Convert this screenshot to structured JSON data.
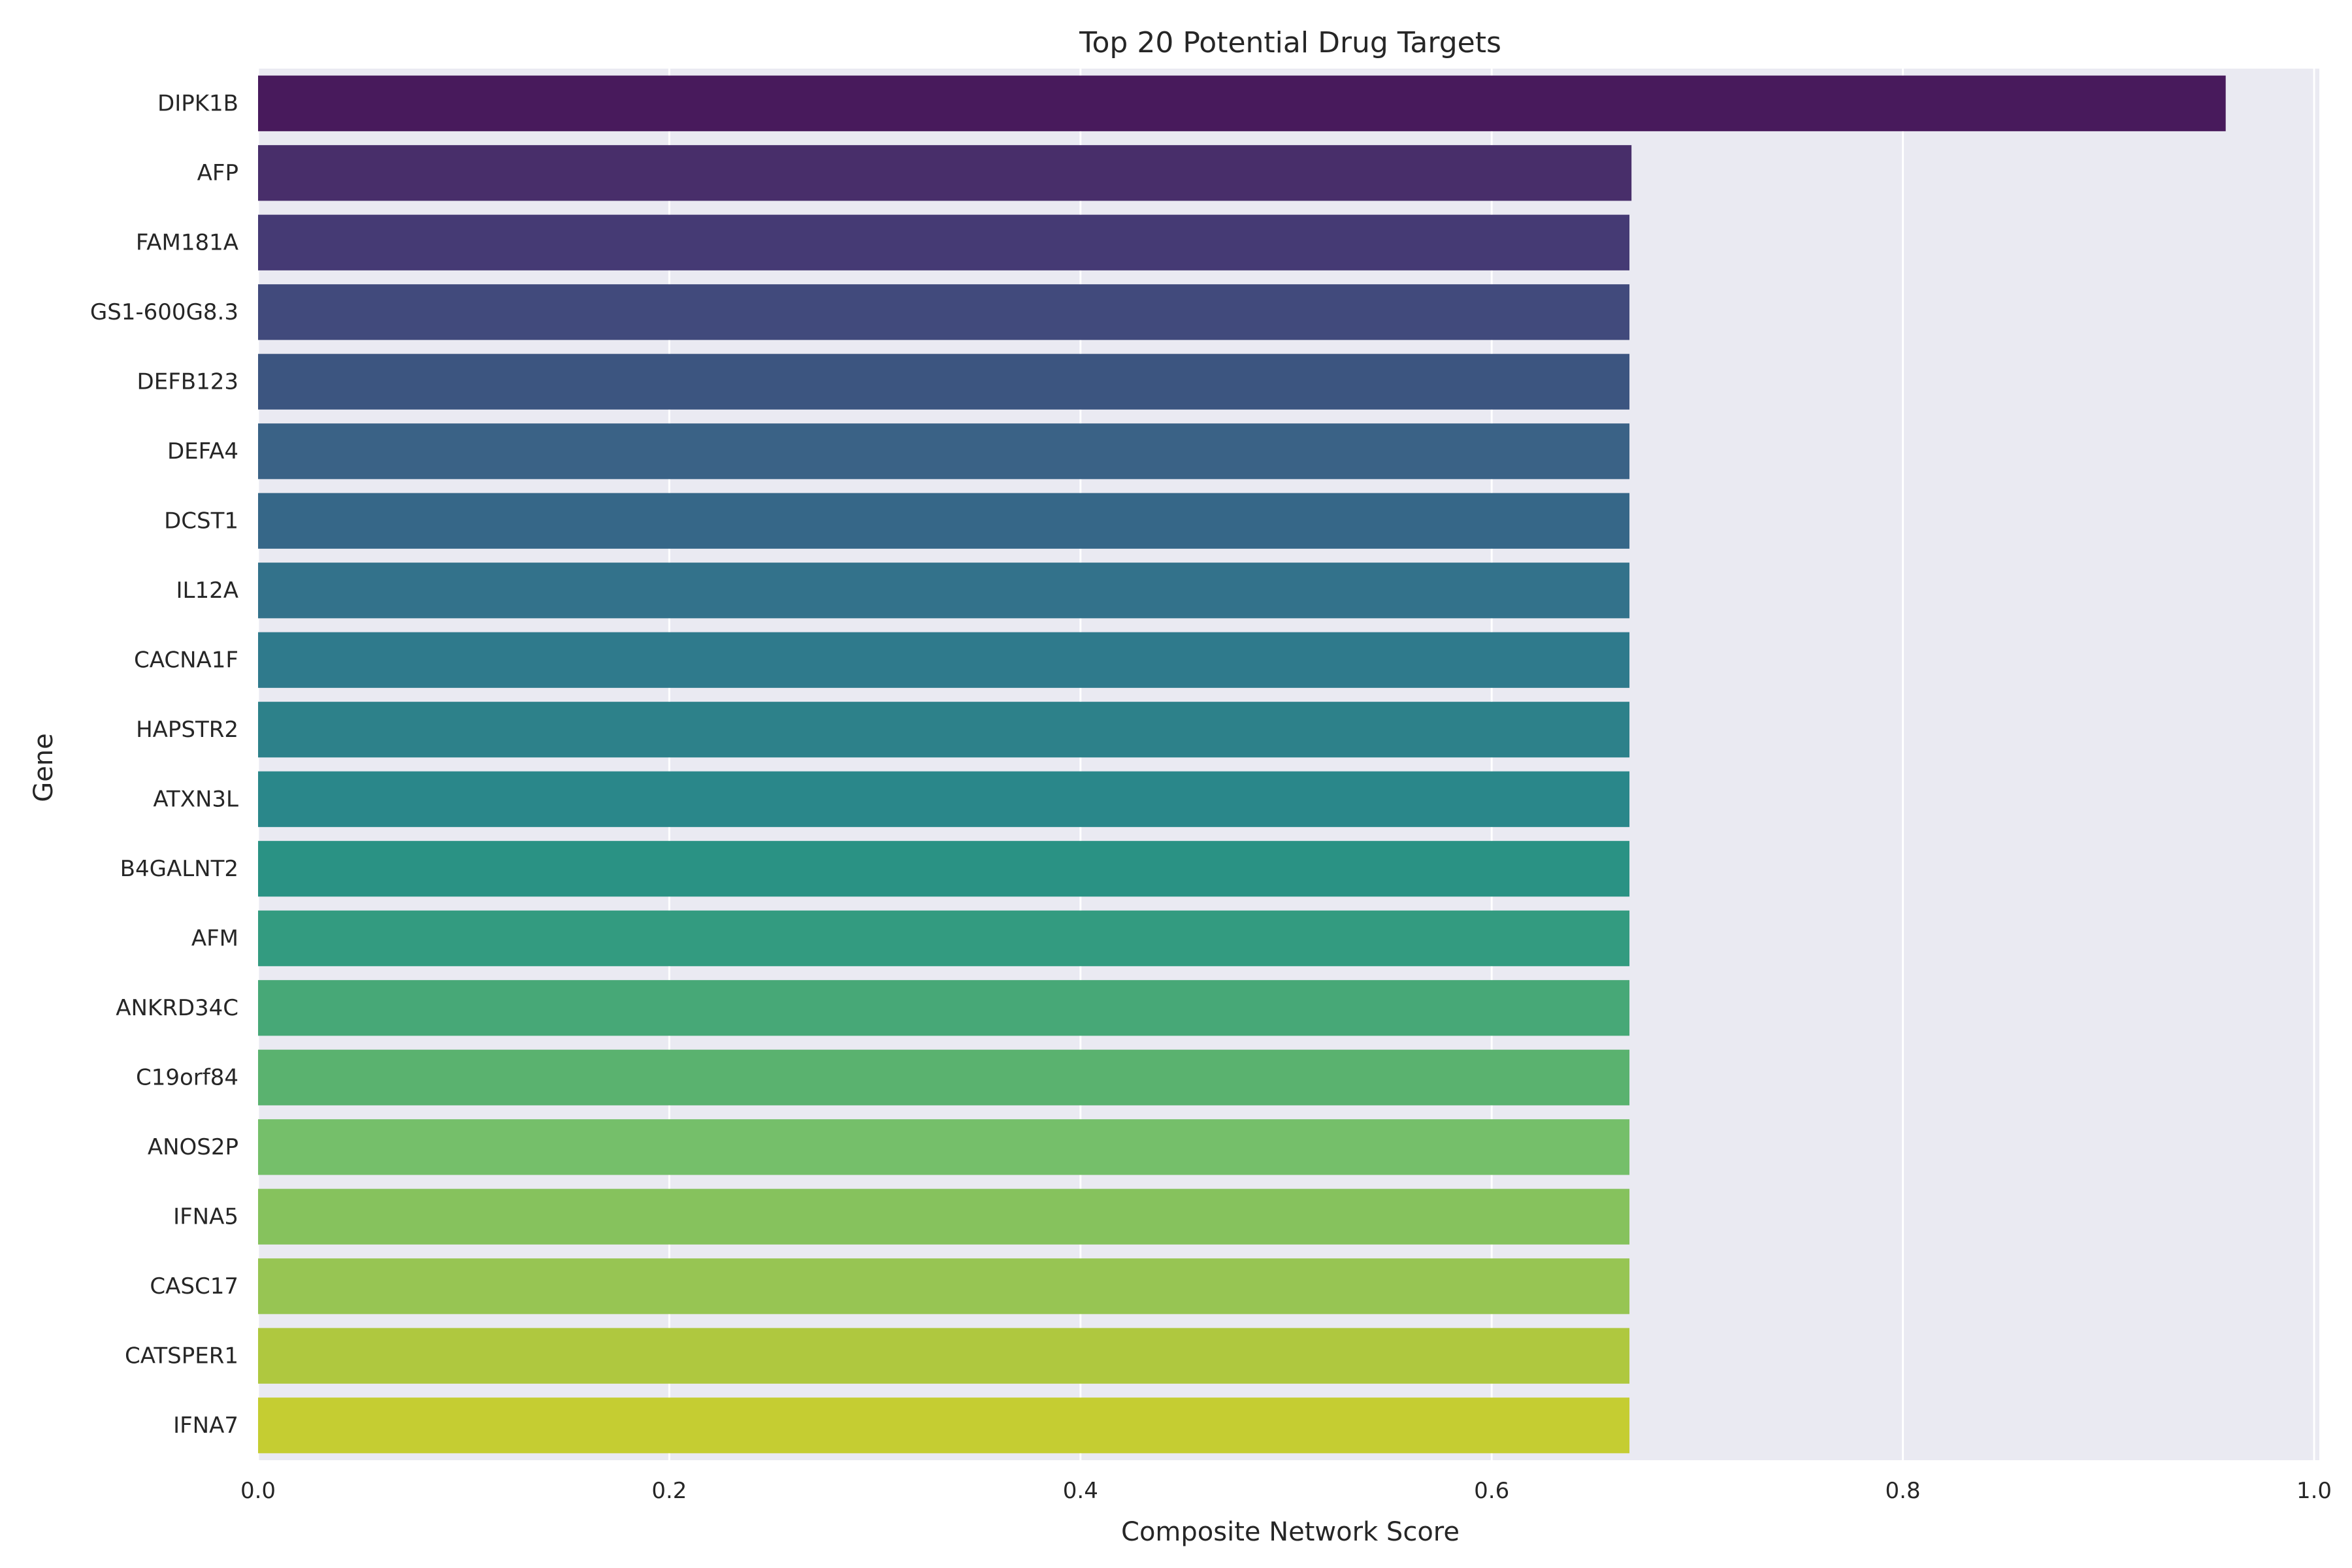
{
  "chart_data": {
    "type": "bar",
    "orientation": "horizontal",
    "title": "Top 20 Potential Drug Targets",
    "xlabel": "Composite Network Score",
    "ylabel": "Gene",
    "xlim": [
      0,
      1.0
    ],
    "xticks": [
      "0.0",
      "0.2",
      "0.4",
      "0.6",
      "0.8",
      "1.0"
    ],
    "grid": true,
    "background": "#eaeaf2",
    "colormap": "viridis",
    "categories": [
      "DIPK1B",
      "AFP",
      "FAM181A",
      "GS1-600G8.3",
      "DEFB123",
      "DEFA4",
      "DCST1",
      "IL12A",
      "CACNA1F",
      "HAPSTR2",
      "ATXN3L",
      "B4GALNT2",
      "AFM",
      "ANKRD34C",
      "C19orf84",
      "ANOS2P",
      "IFNA5",
      "CASC17",
      "CATSPER1",
      "IFNA7"
    ],
    "values": [
      0.957,
      0.668,
      0.667,
      0.667,
      0.667,
      0.667,
      0.667,
      0.667,
      0.667,
      0.667,
      0.667,
      0.667,
      0.667,
      0.667,
      0.667,
      0.667,
      0.667,
      0.667,
      0.667,
      0.667
    ],
    "colors": [
      "#481a5c",
      "#482e6a",
      "#453a74",
      "#414a7c",
      "#3c5580",
      "#3a6286",
      "#366788",
      "#33728b",
      "#2f7a8c",
      "#2d818a",
      "#2a878a",
      "#2a9284",
      "#339b80",
      "#47a877",
      "#5ab26f",
      "#75bf6a",
      "#86c25d",
      "#97c553",
      "#afc83f",
      "#c5cd32"
    ]
  }
}
